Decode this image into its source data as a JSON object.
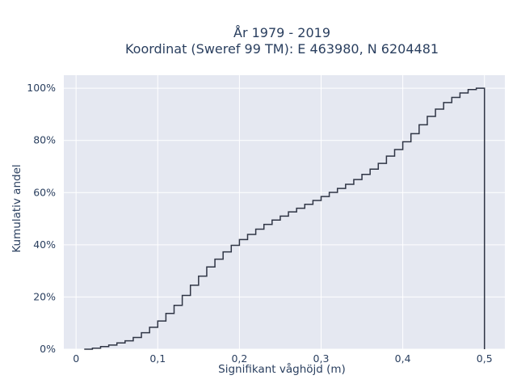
{
  "chart_data": {
    "type": "line",
    "title_line1": "År 1979 - 2019",
    "title_line2": "Koordinat (Sweref 99 TM): E 463980, N 6204481",
    "xlabel": "Signifikant våghöjd (m)",
    "ylabel": "Kumulativ andel",
    "xlim": [
      -0.015,
      0.525
    ],
    "ylim": [
      0,
      1.05
    ],
    "x_ticks": [
      0,
      0.1,
      0.2,
      0.3,
      0.4,
      0.5
    ],
    "x_tick_labels": [
      "0",
      "0,1",
      "0,2",
      "0,3",
      "0,4",
      "0,5"
    ],
    "y_ticks": [
      0,
      0.2,
      0.4,
      0.6,
      0.8,
      1.0
    ],
    "y_tick_labels": [
      "0%",
      "20%",
      "40%",
      "60%",
      "80%",
      "100%"
    ],
    "grid": true,
    "step": true,
    "background_color": "#e5e8f1",
    "line_color": "#2f3545",
    "series": [
      {
        "x": [
          0.01,
          0.02,
          0.03,
          0.04,
          0.05,
          0.06,
          0.07,
          0.08,
          0.09,
          0.1,
          0.11,
          0.12,
          0.13,
          0.14,
          0.15,
          0.16,
          0.17,
          0.18,
          0.19,
          0.2,
          0.21,
          0.22,
          0.23,
          0.24,
          0.25,
          0.26,
          0.27,
          0.28,
          0.29,
          0.3,
          0.31,
          0.32,
          0.33,
          0.34,
          0.35,
          0.36,
          0.37,
          0.38,
          0.39,
          0.4,
          0.41,
          0.42,
          0.43,
          0.44,
          0.45,
          0.46,
          0.47,
          0.48,
          0.49,
          0.5
        ],
        "y": [
          0.0,
          0.004,
          0.01,
          0.016,
          0.024,
          0.032,
          0.045,
          0.063,
          0.084,
          0.108,
          0.137,
          0.168,
          0.206,
          0.245,
          0.28,
          0.315,
          0.345,
          0.373,
          0.398,
          0.42,
          0.44,
          0.46,
          0.478,
          0.495,
          0.51,
          0.526,
          0.54,
          0.555,
          0.57,
          0.585,
          0.601,
          0.616,
          0.632,
          0.65,
          0.67,
          0.69,
          0.712,
          0.74,
          0.765,
          0.795,
          0.826,
          0.86,
          0.892,
          0.92,
          0.945,
          0.965,
          0.982,
          0.995,
          1.0,
          0.0
        ]
      }
    ]
  }
}
